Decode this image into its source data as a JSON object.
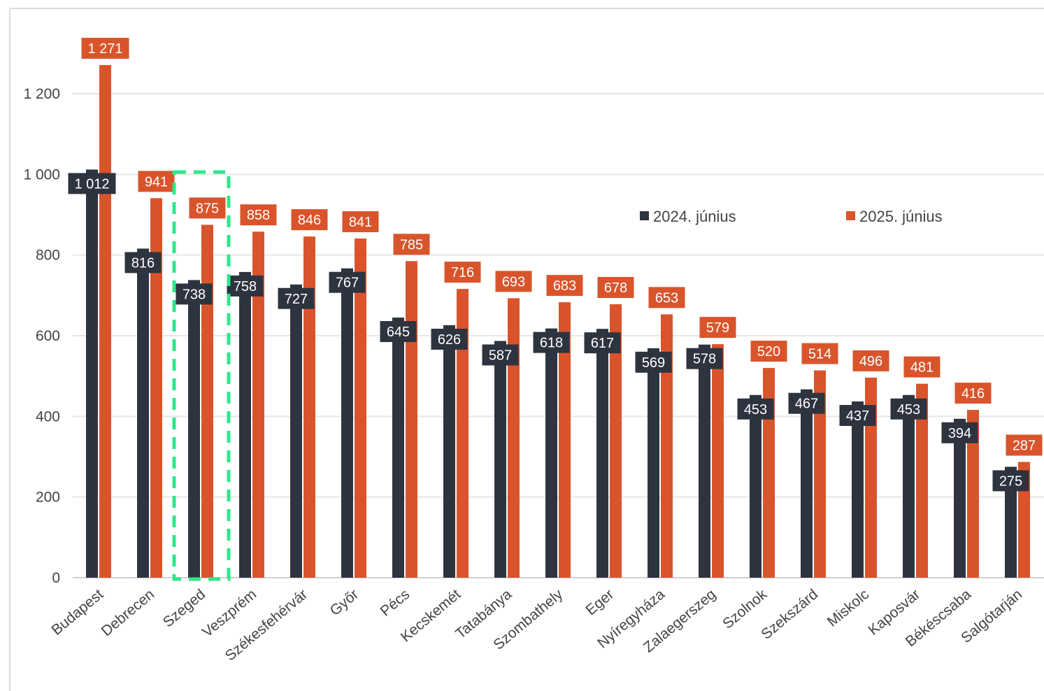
{
  "chart_data": {
    "type": "bar",
    "categories": [
      "Budapest",
      "Debrecen",
      "Szeged",
      "Veszprém",
      "Székesfehérvár",
      "Győr",
      "Pécs",
      "Kecskemét",
      "Tatabánya",
      "Szombathely",
      "Eger",
      "Nyíregyháza",
      "Zalaegerszeg",
      "Szolnok",
      "Szekszárd",
      "Miskolc",
      "Kaposvár",
      "Békéscsaba",
      "Salgótarján"
    ],
    "series": [
      {
        "name": "2024. június",
        "color": "#2e3340",
        "values": [
          1012,
          816,
          738,
          758,
          727,
          767,
          645,
          626,
          587,
          618,
          617,
          569,
          578,
          453,
          467,
          437,
          453,
          394,
          275
        ],
        "labels": [
          "1 012",
          "816",
          "738",
          "758",
          "727",
          "767",
          "645",
          "626",
          "587",
          "618",
          "617",
          "569",
          "578",
          "453",
          "467",
          "437",
          "453",
          "394",
          "275"
        ]
      },
      {
        "name": "2025. június",
        "color": "#d9542b",
        "values": [
          1271,
          941,
          875,
          858,
          846,
          841,
          785,
          716,
          693,
          683,
          678,
          653,
          579,
          520,
          514,
          496,
          481,
          416,
          287
        ],
        "labels": [
          "1 271",
          "941",
          "875",
          "858",
          "846",
          "841",
          "785",
          "716",
          "693",
          "683",
          "678",
          "653",
          "579",
          "520",
          "514",
          "496",
          "481",
          "416",
          "287"
        ]
      }
    ],
    "yticks": [
      0,
      200,
      400,
      600,
      800,
      1000,
      1200
    ],
    "ytick_labels": [
      "0",
      "200",
      "400",
      "600",
      "800",
      "1 000",
      "1 200"
    ],
    "ylim": [
      0,
      1300
    ],
    "grid": true,
    "legend_position": "top-right",
    "highlight": {
      "category": "Szeged",
      "color": "#2ee88a",
      "style": "dashed-box"
    }
  }
}
